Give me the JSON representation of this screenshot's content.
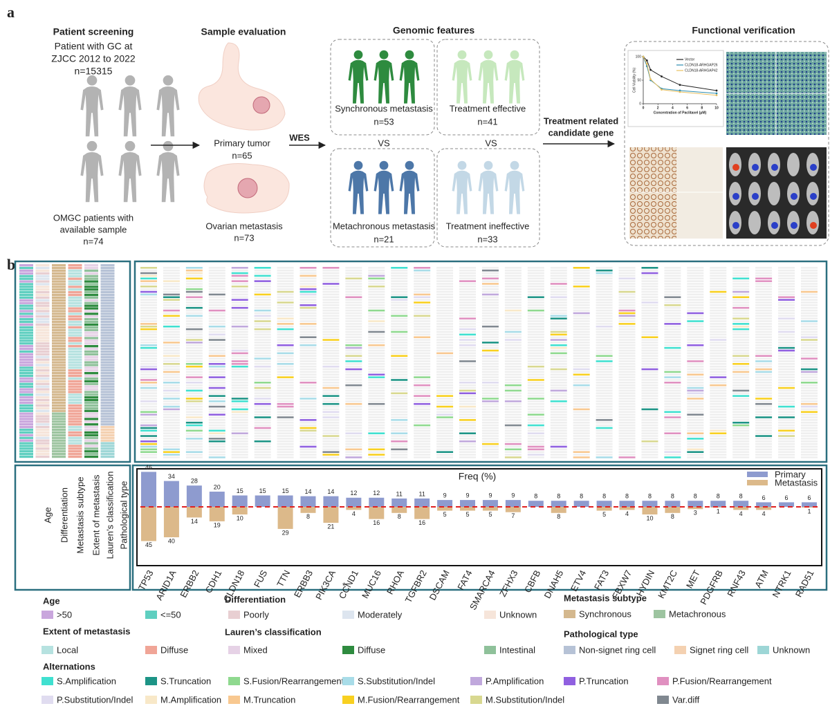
{
  "panel_a": {
    "label": "a",
    "screening": {
      "title": "Patient screening",
      "lines": [
        "Patient with GC at",
        "ZJCC 2012 to 2022",
        "n=15315"
      ],
      "omgc": [
        "OMGC patients with",
        "available sample",
        "n=74"
      ]
    },
    "sample": {
      "title": "Sample evaluation",
      "primary": "Primary tumor",
      "primary_n": "n=65",
      "ovarian": "Ovarian metastasis",
      "ovarian_n": "n=73"
    },
    "wes": "WES",
    "genomic": {
      "title": "Genomic features",
      "vs": "VS",
      "boxes": [
        {
          "label": "Synchronous metastasis",
          "n": "n=53"
        },
        {
          "label": "Treatment effective",
          "n": "n=41"
        },
        {
          "label": "Metachronous metastasis",
          "n": "n=21"
        },
        {
          "label": "Treatment ineffective",
          "n": "n=33"
        }
      ]
    },
    "candidate": [
      "Treatment related",
      "candidate gene"
    ],
    "functional": {
      "title": "Functional verification"
    }
  },
  "chart_data": [
    {
      "type": "bar",
      "title": "Freq (%)",
      "categories": [
        "TP53",
        "ARID1A",
        "ERBB2",
        "CDH1",
        "CLDN18",
        "FUS",
        "TTN",
        "ERBB3",
        "PIK3CA",
        "CCND1",
        "MUC16",
        "RHOA",
        "TGFBR2",
        "DSCAM",
        "FAT4",
        "SMARCA4",
        "ZFHX3",
        "CBFB",
        "DNAH5",
        "ETV4",
        "FAT3",
        "FBXW7",
        "HYDIN",
        "KMT2C",
        "MET",
        "PDGFRB",
        "RNF43",
        "ATM",
        "NTRK1",
        "RAD51"
      ],
      "series": [
        {
          "name": "Primary",
          "color": "#8e9bcf",
          "values": [
            46,
            34,
            28,
            20,
            15,
            15,
            15,
            14,
            14,
            12,
            12,
            11,
            11,
            9,
            9,
            9,
            9,
            8,
            8,
            8,
            8,
            8,
            8,
            8,
            8,
            8,
            8,
            6,
            6,
            6
          ]
        },
        {
          "name": "Metastasis",
          "color": "#dcb98a",
          "values": [
            45,
            40,
            14,
            19,
            10,
            null,
            29,
            8,
            21,
            4,
            16,
            8,
            16,
            5,
            5,
            5,
            7,
            null,
            8,
            null,
            5,
            4,
            10,
            8,
            3,
            1,
            4,
            4,
            null,
            1
          ]
        }
      ],
      "annotations": [
        {
          "text": "*"
        }
      ],
      "baseline_color": "#e02020"
    },
    {
      "type": "line",
      "xlabel": "Concentration of Paclitaxel (μM)",
      "ylabel": "Cell Viability (%)",
      "x": [
        0,
        0.5,
        1,
        2.5,
        5,
        10
      ],
      "series": [
        {
          "name": "Vector",
          "color": "#222222",
          "values": [
            100,
            92,
            72,
            58,
            40,
            28
          ]
        },
        {
          "name": "CLDN18-ARHGAP26",
          "color": "#2a8cb0",
          "values": [
            100,
            80,
            50,
            32,
            28,
            22
          ]
        },
        {
          "name": "CLDN18-ARHGAP42",
          "color": "#e8c060",
          "values": [
            100,
            85,
            52,
            30,
            25,
            18
          ]
        }
      ],
      "xlim": [
        0,
        10
      ],
      "xticks": [
        0,
        2,
        4,
        6,
        8,
        10
      ],
      "ylim": [
        0,
        100
      ],
      "yticks": [
        0,
        50,
        100
      ]
    }
  ],
  "panel_b": {
    "label": "b",
    "track_labels": [
      "Age",
      "Differentiation",
      "Metastasis subtype",
      "Extent of metastasis",
      "Lauren’s classification",
      "Pathological type"
    ],
    "legend": [
      {
        "title": "Age",
        "items": [
          {
            "label": ">50",
            "color": "#c9a6dd"
          },
          {
            "label": "<=50",
            "color": "#5fcfc0"
          }
        ]
      },
      {
        "title": "Differentiation",
        "items": [
          {
            "label": "Poorly",
            "color": "#e8cfd2"
          },
          {
            "label": "Moderately",
            "color": "#dde5ef"
          },
          {
            "label": "Unknown",
            "color": "#f6e5da"
          }
        ]
      },
      {
        "title": "Metastasis subtype",
        "items": [
          {
            "label": "Synchronous",
            "color": "#d4b88e"
          },
          {
            "label": "Metachronous",
            "color": "#9dc4a0"
          }
        ]
      },
      {
        "title": "Extent of metastasis",
        "items": [
          {
            "label": "Local",
            "color": "#b6e2e0"
          },
          {
            "label": "Diffuse",
            "color": "#f0a597"
          }
        ]
      },
      {
        "title": "Lauren’s classification",
        "items": [
          {
            "label": "Mixed",
            "color": "#e6d2e6"
          },
          {
            "label": "Diffuse",
            "color": "#2e8b3f"
          },
          {
            "label": "Intestinal",
            "color": "#8fc19a"
          }
        ]
      },
      {
        "title": "Pathological type",
        "items": [
          {
            "label": "Non-signet ring cell",
            "color": "#b6c2d6"
          },
          {
            "label": "Signet ring cell",
            "color": "#f4d1b1"
          },
          {
            "label": "Unknown",
            "color": "#9dd6d6"
          }
        ]
      },
      {
        "title": "Alternations",
        "items": [
          {
            "label": "S.Amplification",
            "color": "#40e0d0"
          },
          {
            "label": "S.Truncation",
            "color": "#1d9486"
          },
          {
            "label": "S.Fusion/Rearrangement",
            "color": "#8fd98f"
          },
          {
            "label": "S.Substitution/Indel",
            "color": "#a8dce8"
          },
          {
            "label": "P.Amplification",
            "color": "#c0a8dc"
          },
          {
            "label": "P.Truncation",
            "color": "#9060e0"
          },
          {
            "label": "P.Fusion/Rearrangement",
            "color": "#e090c0"
          },
          {
            "label": "P.Substitution/Indel",
            "color": "#e0dcf0"
          },
          {
            "label": "M.Amplification",
            "color": "#f8e8c8"
          },
          {
            "label": "M.Truncation",
            "color": "#f8c890"
          },
          {
            "label": "M.Fusion/Rearrangement",
            "color": "#f8d020"
          },
          {
            "label": "M.Substitution/Indel",
            "color": "#d8d890"
          },
          {
            "label": "Var.diff",
            "color": "#808890"
          }
        ]
      }
    ]
  }
}
